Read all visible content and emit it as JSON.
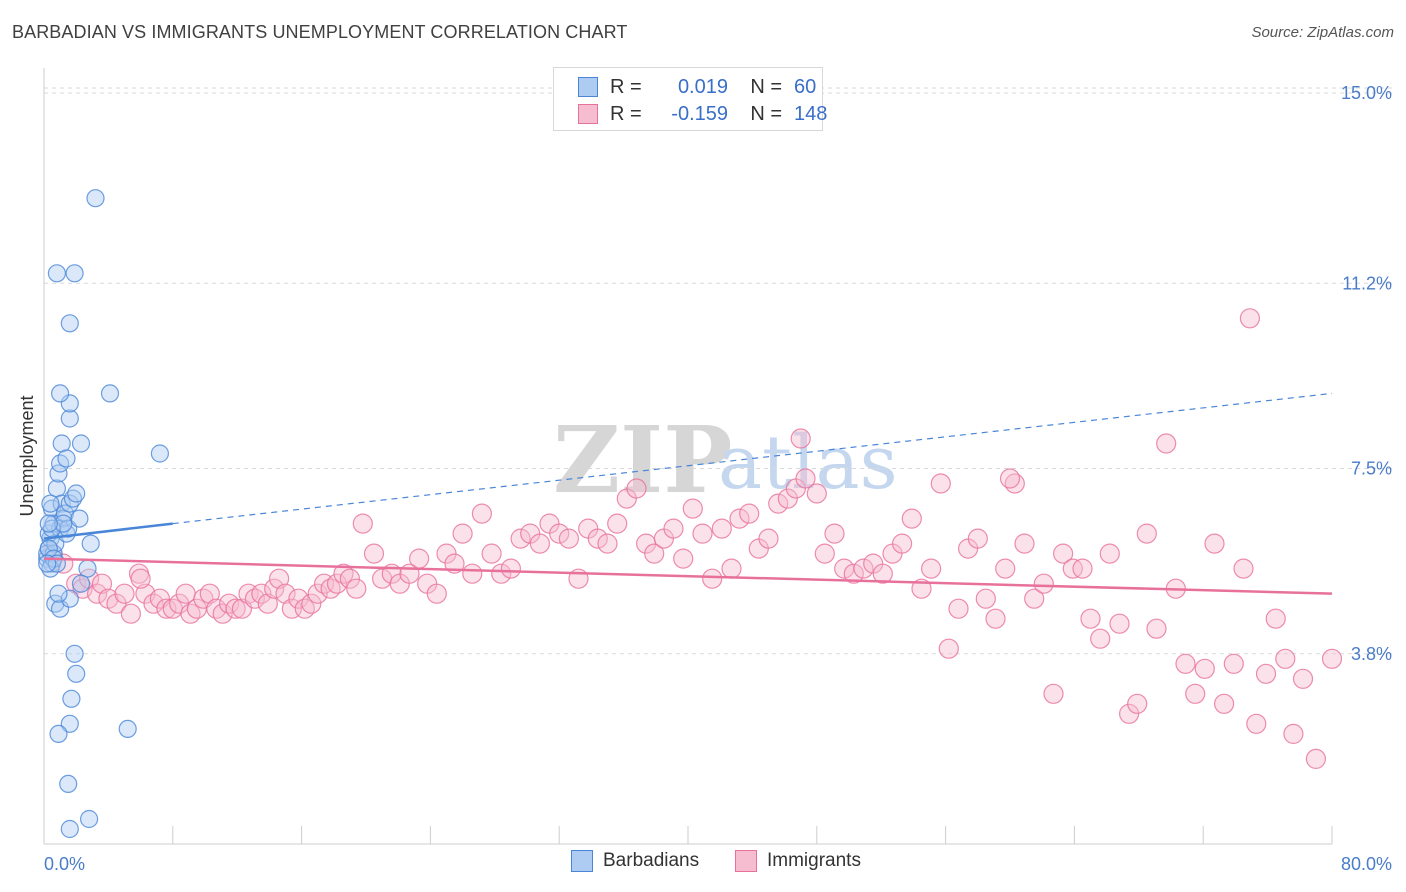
{
  "title": "BARBADIAN VS IMMIGRANTS UNEMPLOYMENT CORRELATION CHART",
  "source": "Source: ZipAtlas.com",
  "watermark": {
    "zip": "ZIP",
    "atlas": "atlas"
  },
  "colors": {
    "barbadians": "#4a86d8",
    "barbadians_fill": "#aecbf2",
    "immigrants": "#e8719b",
    "immigrants_fill": "#f6bcd0",
    "tick_label": "#4a7cc9",
    "grid": "#d9d9d9"
  },
  "legend": {
    "rows": [
      {
        "r_label": "R =",
        "r_value": "0.019",
        "n_label": "N =",
        "n_value": "60"
      },
      {
        "r_label": "R =",
        "r_value": "-0.159",
        "n_label": "N =",
        "n_value": "148"
      }
    ]
  },
  "bottom_legend": {
    "barbadians": "Barbadians",
    "immigrants": "Immigrants"
  },
  "chart_data": {
    "type": "scatter",
    "title": "BARBADIAN VS IMMIGRANTS UNEMPLOYMENT CORRELATION CHART",
    "xlabel": "",
    "ylabel": "Unemployment",
    "xlim": [
      0,
      80
    ],
    "ylim": [
      0,
      15.5
    ],
    "x_tick_labels": [
      "0.0%",
      "80.0%"
    ],
    "y_ticks": [
      3.8,
      7.5,
      11.2,
      15.0
    ],
    "y_tick_labels": [
      "3.8%",
      "7.5%",
      "11.2%",
      "15.0%"
    ],
    "grid": "horizontal-dashed",
    "legend_position": "top-center",
    "series": [
      {
        "name": "Barbadians",
        "R": 0.019,
        "N": 60,
        "trend": {
          "x0": 0,
          "y0": 6.1,
          "x1": 8,
          "y1": 6.4,
          "dashed_to_x": 80,
          "dashed_to_y": 9.0
        },
        "points": [
          [
            0.2,
            5.7
          ],
          [
            0.3,
            5.9
          ],
          [
            0.4,
            6.1
          ],
          [
            0.2,
            5.8
          ],
          [
            0.5,
            5.6
          ],
          [
            0.3,
            6.2
          ],
          [
            0.6,
            5.8
          ],
          [
            0.4,
            5.5
          ],
          [
            0.7,
            6.0
          ],
          [
            0.5,
            6.7
          ],
          [
            0.6,
            6.4
          ],
          [
            0.8,
            7.1
          ],
          [
            0.9,
            7.4
          ],
          [
            1.0,
            7.6
          ],
          [
            1.1,
            6.8
          ],
          [
            1.2,
            6.5
          ],
          [
            1.0,
            6.3
          ],
          [
            1.3,
            6.6
          ],
          [
            1.4,
            6.2
          ],
          [
            1.5,
            6.3
          ],
          [
            1.6,
            6.8
          ],
          [
            1.8,
            6.9
          ],
          [
            2.0,
            7.0
          ],
          [
            2.2,
            6.5
          ],
          [
            1.1,
            8.0
          ],
          [
            1.6,
            8.5
          ],
          [
            1.6,
            8.8
          ],
          [
            1.0,
            9.0
          ],
          [
            2.3,
            8.0
          ],
          [
            1.6,
            10.4
          ],
          [
            0.8,
            11.4
          ],
          [
            1.9,
            11.4
          ],
          [
            3.2,
            12.9
          ],
          [
            4.1,
            9.0
          ],
          [
            7.2,
            7.8
          ],
          [
            1.4,
            7.7
          ],
          [
            2.9,
            6.0
          ],
          [
            2.7,
            5.5
          ],
          [
            2.3,
            5.2
          ],
          [
            0.7,
            4.8
          ],
          [
            1.0,
            4.7
          ],
          [
            1.6,
            4.9
          ],
          [
            0.9,
            5.0
          ],
          [
            1.9,
            3.8
          ],
          [
            2.0,
            3.4
          ],
          [
            1.7,
            2.9
          ],
          [
            1.6,
            2.4
          ],
          [
            0.9,
            2.2
          ],
          [
            5.2,
            2.3
          ],
          [
            1.5,
            1.2
          ],
          [
            1.6,
            0.3
          ],
          [
            2.8,
            0.5
          ],
          [
            0.3,
            5.9
          ],
          [
            0.5,
            6.3
          ],
          [
            0.6,
            5.7
          ],
          [
            0.4,
            6.8
          ],
          [
            0.8,
            5.6
          ],
          [
            1.2,
            6.4
          ],
          [
            0.3,
            6.4
          ],
          [
            0.2,
            5.6
          ]
        ]
      },
      {
        "name": "Immigrants",
        "R": -0.159,
        "N": 148,
        "trend": {
          "x0": 0,
          "y0": 5.7,
          "x1": 80,
          "y1": 5.0
        },
        "points": [
          [
            0.5,
            5.8
          ],
          [
            1.2,
            5.6
          ],
          [
            2.0,
            5.2
          ],
          [
            2.4,
            5.1
          ],
          [
            2.8,
            5.3
          ],
          [
            3.3,
            5.0
          ],
          [
            3.6,
            5.2
          ],
          [
            4.0,
            4.9
          ],
          [
            4.5,
            4.8
          ],
          [
            5.0,
            5.0
          ],
          [
            5.4,
            4.6
          ],
          [
            5.9,
            5.4
          ],
          [
            6.3,
            5.0
          ],
          [
            6.8,
            4.8
          ],
          [
            7.2,
            4.9
          ],
          [
            7.6,
            4.7
          ],
          [
            8.0,
            4.7
          ],
          [
            8.4,
            4.8
          ],
          [
            8.8,
            5.0
          ],
          [
            9.1,
            4.6
          ],
          [
            9.5,
            4.7
          ],
          [
            9.9,
            4.9
          ],
          [
            10.3,
            5.0
          ],
          [
            10.7,
            4.7
          ],
          [
            11.1,
            4.6
          ],
          [
            11.5,
            4.8
          ],
          [
            11.9,
            4.7
          ],
          [
            12.3,
            4.7
          ],
          [
            12.7,
            5.0
          ],
          [
            13.1,
            4.9
          ],
          [
            13.5,
            5.0
          ],
          [
            13.9,
            4.8
          ],
          [
            14.3,
            5.1
          ],
          [
            14.6,
            5.3
          ],
          [
            15.0,
            5.0
          ],
          [
            15.4,
            4.7
          ],
          [
            15.8,
            4.9
          ],
          [
            16.2,
            4.7
          ],
          [
            16.6,
            4.8
          ],
          [
            17.0,
            5.0
          ],
          [
            17.4,
            5.2
          ],
          [
            17.8,
            5.1
          ],
          [
            18.2,
            5.2
          ],
          [
            18.6,
            5.4
          ],
          [
            19.0,
            5.3
          ],
          [
            19.4,
            5.1
          ],
          [
            19.8,
            6.4
          ],
          [
            20.5,
            5.8
          ],
          [
            21.0,
            5.3
          ],
          [
            21.6,
            5.4
          ],
          [
            22.1,
            5.2
          ],
          [
            22.7,
            5.4
          ],
          [
            23.3,
            5.7
          ],
          [
            23.8,
            5.2
          ],
          [
            24.4,
            5.0
          ],
          [
            25.0,
            5.8
          ],
          [
            25.5,
            5.6
          ],
          [
            26.0,
            6.2
          ],
          [
            26.6,
            5.4
          ],
          [
            27.2,
            6.6
          ],
          [
            27.8,
            5.8
          ],
          [
            28.4,
            5.4
          ],
          [
            29.0,
            5.5
          ],
          [
            29.6,
            6.1
          ],
          [
            30.2,
            6.2
          ],
          [
            30.8,
            6.0
          ],
          [
            31.4,
            6.4
          ],
          [
            32.0,
            6.2
          ],
          [
            32.6,
            6.1
          ],
          [
            33.2,
            5.3
          ],
          [
            33.8,
            6.3
          ],
          [
            34.4,
            6.1
          ],
          [
            35.0,
            6.0
          ],
          [
            35.6,
            6.4
          ],
          [
            36.2,
            6.9
          ],
          [
            36.8,
            7.1
          ],
          [
            37.4,
            6.0
          ],
          [
            37.9,
            5.8
          ],
          [
            38.5,
            6.1
          ],
          [
            39.1,
            6.3
          ],
          [
            39.7,
            5.7
          ],
          [
            40.3,
            6.7
          ],
          [
            40.9,
            6.2
          ],
          [
            41.5,
            5.3
          ],
          [
            42.1,
            6.3
          ],
          [
            42.7,
            5.5
          ],
          [
            43.2,
            6.5
          ],
          [
            43.8,
            6.6
          ],
          [
            44.4,
            5.9
          ],
          [
            45.0,
            6.1
          ],
          [
            45.6,
            6.8
          ],
          [
            46.2,
            6.9
          ],
          [
            46.7,
            7.1
          ],
          [
            47.3,
            7.3
          ],
          [
            48.0,
            7.0
          ],
          [
            48.5,
            5.8
          ],
          [
            49.1,
            6.2
          ],
          [
            49.7,
            5.5
          ],
          [
            50.3,
            5.4
          ],
          [
            50.9,
            5.5
          ],
          [
            51.5,
            5.6
          ],
          [
            52.1,
            5.4
          ],
          [
            52.7,
            5.8
          ],
          [
            53.3,
            6.0
          ],
          [
            53.9,
            6.5
          ],
          [
            54.5,
            5.1
          ],
          [
            55.1,
            5.5
          ],
          [
            55.7,
            7.2
          ],
          [
            56.2,
            3.9
          ],
          [
            56.8,
            4.7
          ],
          [
            57.4,
            5.9
          ],
          [
            58.0,
            6.1
          ],
          [
            58.5,
            4.9
          ],
          [
            59.1,
            4.5
          ],
          [
            59.7,
            5.5
          ],
          [
            60.3,
            7.2
          ],
          [
            60.9,
            6.0
          ],
          [
            61.5,
            4.9
          ],
          [
            62.1,
            5.2
          ],
          [
            62.7,
            3.0
          ],
          [
            63.3,
            5.8
          ],
          [
            63.9,
            5.5
          ],
          [
            64.5,
            5.5
          ],
          [
            65.0,
            4.5
          ],
          [
            65.6,
            4.1
          ],
          [
            66.2,
            5.8
          ],
          [
            66.8,
            4.4
          ],
          [
            67.4,
            2.6
          ],
          [
            67.9,
            2.8
          ],
          [
            68.5,
            6.2
          ],
          [
            69.1,
            4.3
          ],
          [
            69.7,
            8.0
          ],
          [
            70.3,
            5.1
          ],
          [
            70.9,
            3.6
          ],
          [
            71.5,
            3.0
          ],
          [
            72.1,
            3.5
          ],
          [
            72.7,
            6.0
          ],
          [
            73.3,
            2.8
          ],
          [
            73.9,
            3.6
          ],
          [
            74.5,
            5.5
          ],
          [
            74.9,
            10.5
          ],
          [
            75.3,
            2.4
          ],
          [
            75.9,
            3.4
          ],
          [
            76.5,
            4.5
          ],
          [
            77.1,
            3.7
          ],
          [
            77.6,
            2.2
          ],
          [
            78.2,
            3.3
          ],
          [
            79.0,
            1.7
          ],
          [
            80.0,
            3.7
          ],
          [
            47.0,
            8.1
          ],
          [
            60.0,
            7.3
          ],
          [
            6.0,
            5.3
          ]
        ]
      }
    ]
  }
}
